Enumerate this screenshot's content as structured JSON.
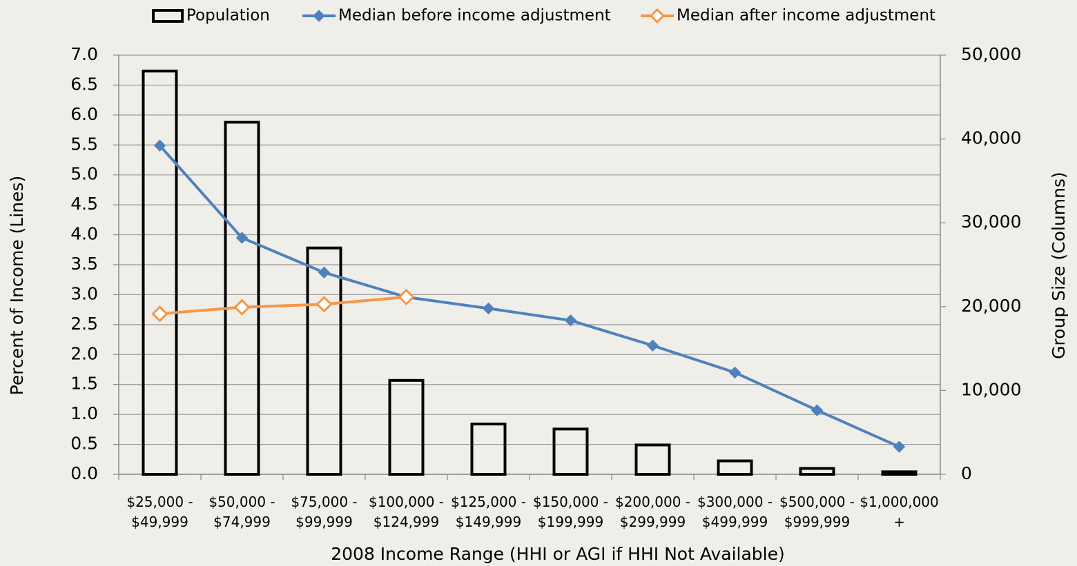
{
  "chart_data": {
    "type": "bar_line_combo",
    "legend": {
      "position": "top"
    },
    "x_label": "2008 Income Range (HHI or AGI if HHI Not Available)",
    "y_label": "Percent of Income (Lines)",
    "y2_label": "Group Size (Columns)",
    "categories": [
      "$25,000 - $49,999",
      "$50,000 - $74,999",
      "$75,000 - $99,999",
      "$100,000 - $124,999",
      "$125,000 - $149,999",
      "$150,000 - $199,999",
      "$200,000 - $299,999",
      "$300,000 - $499,999",
      "$500,000 - $999,999",
      "$1,000,000 +"
    ],
    "series": [
      {
        "name": "Population",
        "type": "bar",
        "axis": "y2",
        "color": "#000000",
        "values": [
          48100,
          42000,
          27000,
          11200,
          6000,
          5400,
          3500,
          1600,
          700,
          300
        ]
      },
      {
        "name": "Median before income adjustment",
        "type": "line",
        "axis": "y",
        "color": "#4f81bd",
        "marker": "filled-diamond",
        "values": [
          5.49,
          3.95,
          3.37,
          2.96,
          2.77,
          2.57,
          2.15,
          1.7,
          1.07,
          0.46
        ]
      },
      {
        "name": "Median after income adjustment",
        "type": "line",
        "axis": "y",
        "color": "#f79646",
        "marker": "hollow-diamond",
        "values": [
          2.68,
          2.79,
          2.84,
          2.96,
          null,
          null,
          null,
          null,
          null,
          null
        ]
      }
    ],
    "ylim": [
      0,
      7
    ],
    "yticks": [
      {
        "value": 0,
        "label": "0.0"
      },
      {
        "value": 0.5,
        "label": "0.5"
      },
      {
        "value": 1,
        "label": "1.0"
      },
      {
        "value": 1.5,
        "label": "1.5"
      },
      {
        "value": 2,
        "label": "2.0"
      },
      {
        "value": 2.5,
        "label": "2.5"
      },
      {
        "value": 3,
        "label": "3.0"
      },
      {
        "value": 3.5,
        "label": "3.5"
      },
      {
        "value": 4,
        "label": "4.0"
      },
      {
        "value": 4.5,
        "label": "4.5"
      },
      {
        "value": 5,
        "label": "5.0"
      },
      {
        "value": 5.5,
        "label": "5.5"
      },
      {
        "value": 6,
        "label": "6.0"
      },
      {
        "value": 6.5,
        "label": "6.5"
      },
      {
        "value": 7,
        "label": "7.0"
      }
    ],
    "y2lim": [
      0,
      50000
    ],
    "y2ticks": [
      0,
      {
        "value": 10000,
        "label": "10,000"
      },
      {
        "value": 20000,
        "label": "20,000"
      },
      {
        "value": 30000,
        "label": "30,000"
      },
      {
        "value": 40000,
        "label": "40,000"
      },
      {
        "value": 50000,
        "label": "50,000"
      }
    ],
    "grid": true
  }
}
